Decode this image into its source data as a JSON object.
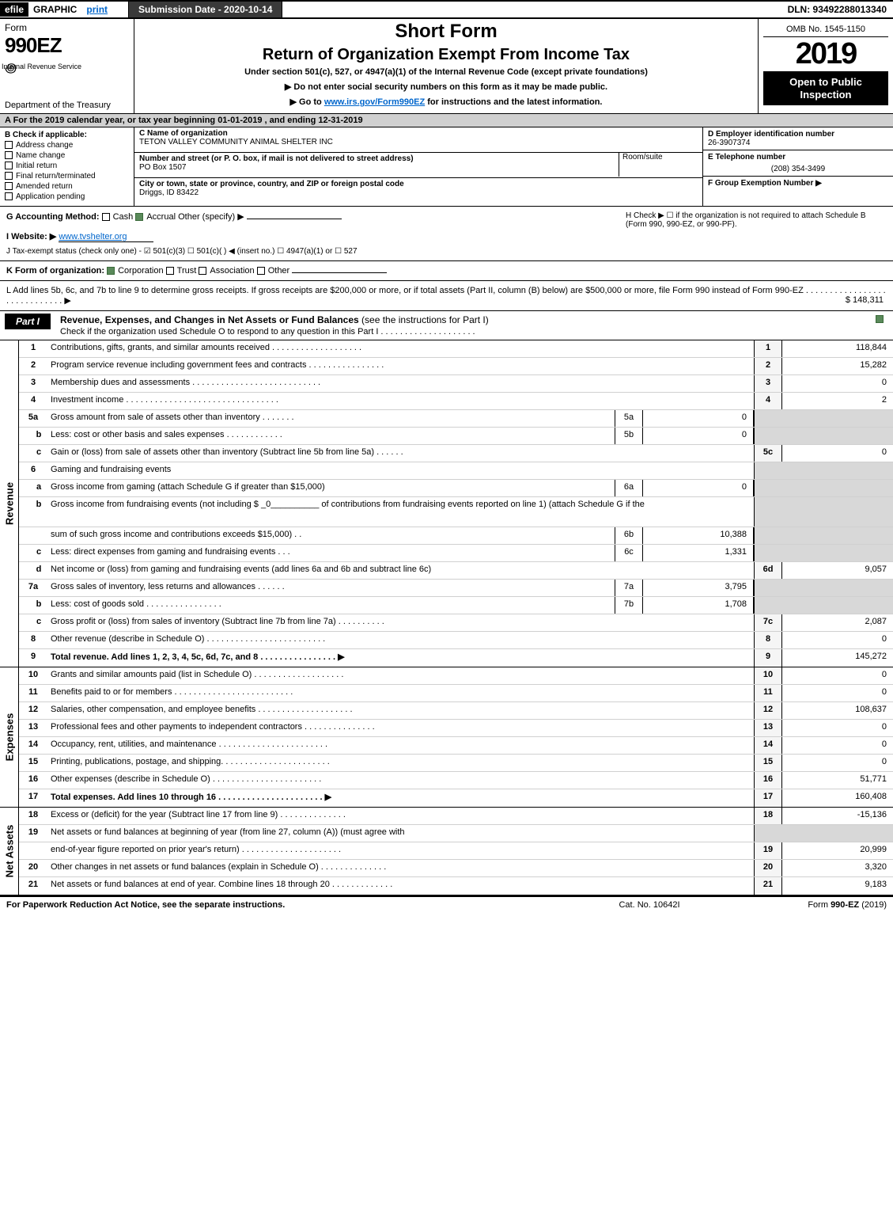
{
  "topbar": {
    "efile": "efile",
    "graphic": "GRAPHIC",
    "print": "print",
    "submission_date_label": "Submission Date - 2020-10-14",
    "dln": "DLN: 93492288013340"
  },
  "header": {
    "form_word": "Form",
    "form_number": "990EZ",
    "dept": "Department of the Treasury",
    "irs": "Internal Revenue Service",
    "short_form": "Short Form",
    "title": "Return of Organization Exempt From Income Tax",
    "subtitle": "Under section 501(c), 527, or 4947(a)(1) of the Internal Revenue Code (except private foundations)",
    "note_ssn": "▶ Do not enter social security numbers on this form as it may be made public.",
    "note_goto_pre": "▶ Go to ",
    "note_goto_link": "www.irs.gov/Form990EZ",
    "note_goto_post": " for instructions and the latest information.",
    "omb": "OMB No. 1545-1150",
    "year": "2019",
    "open": "Open to Public Inspection"
  },
  "period": {
    "text": "A For the 2019 calendar year, or tax year beginning 01-01-2019 , and ending 12-31-2019"
  },
  "block_b": {
    "hdr": "B Check if applicable:",
    "items": [
      "Address change",
      "Name change",
      "Initial return",
      "Final return/terminated",
      "Amended return",
      "Application pending"
    ]
  },
  "block_c": {
    "name_lbl": "C Name of organization",
    "name": "TETON VALLEY COMMUNITY ANIMAL SHELTER INC",
    "street_lbl": "Number and street (or P. O. box, if mail is not delivered to street address)",
    "room_lbl": "Room/suite",
    "street": "PO Box 1507",
    "city_lbl": "City or town, state or province, country, and ZIP or foreign postal code",
    "city": "Driggs, ID  83422"
  },
  "block_d": {
    "ein_lbl": "D Employer identification number",
    "ein": "26-3907374",
    "tel_lbl": "E Telephone number",
    "tel": "(208) 354-3499",
    "group_lbl": "F Group Exemption Number   ▶"
  },
  "g": {
    "label": "G Accounting Method:",
    "cash": "Cash",
    "accrual": "Accrual",
    "other": "Other (specify) ▶"
  },
  "h": {
    "text": "H  Check  ▶  ☐  if the organization is not required to attach Schedule B (Form 990, 990-EZ, or 990-PF)."
  },
  "i": {
    "label": "I Website: ▶",
    "value": "www.tvshelter.org"
  },
  "j": {
    "text": "J Tax-exempt status (check only one) - ☑ 501(c)(3) ☐  501(c)(   ) ◀ (insert no.) ☐  4947(a)(1) or ☐  527"
  },
  "k": {
    "label": "K Form of organization:",
    "corp": "Corporation",
    "trust": "Trust",
    "assoc": "Association",
    "other": "Other"
  },
  "l": {
    "text": "L Add lines 5b, 6c, and 7b to line 9 to determine gross receipts. If gross receipts are $200,000 or more, or if total assets (Part II, column (B) below) are $500,000 or more, file Form 990 instead of Form 990-EZ  .  .  .  .  .  .  .  .  .  .  .  .  .  .  .  .  .  .  .  .  .  .  .  .  .  .  .  .  .  ▶",
    "amount": "$ 148,311"
  },
  "part1": {
    "label": "Part I",
    "title": "Revenue, Expenses, and Changes in Net Assets or Fund Balances",
    "title_note": "(see the instructions for Part I)",
    "check_note": "Check if the organization used Schedule O to respond to any question in this Part I  .  .  .  .  .  .  .  .  .  .  .  .  .  .  .  .  .  .  .  ."
  },
  "revenue_label": "Revenue",
  "expense_label": "Expenses",
  "netassets_label": "Net Assets",
  "lines_revenue": [
    {
      "no": "1",
      "text": "Contributions, gifts, grants, and similar amounts received  .  .  .  .  .  .  .  .  .  .  .  .  .  .  .  .  .  .  .",
      "end_no": "1",
      "end_val": "118,844"
    },
    {
      "no": "2",
      "text": "Program service revenue including government fees and contracts  .  .  .  .  .  .  .  .  .  .  .  .  .  .  .  .",
      "end_no": "2",
      "end_val": "15,282"
    },
    {
      "no": "3",
      "text": "Membership dues and assessments  .  .  .  .  .  .  .  .  .  .  .  .  .  .  .  .  .  .  .  .  .  .  .  .  .  .  .",
      "end_no": "3",
      "end_val": "0"
    },
    {
      "no": "4",
      "text": "Investment income  .  .  .  .  .  .  .  .  .  .  .  .  .  .  .  .  .  .  .  .  .  .  .  .  .  .  .  .  .  .  .  .",
      "end_no": "4",
      "end_val": "2"
    },
    {
      "no": "5a",
      "text": "Gross amount from sale of assets other than inventory  .  .  .  .  .  .  .",
      "mid_no": "5a",
      "mid_val": "0",
      "end_blank": true
    },
    {
      "no": "b",
      "sub": true,
      "text": "Less: cost or other basis and sales expenses  .  .  .  .  .  .  .  .  .  .  .  .",
      "mid_no": "5b",
      "mid_val": "0",
      "end_blank": true
    },
    {
      "no": "c",
      "sub": true,
      "text": "Gain or (loss) from sale of assets other than inventory (Subtract line 5b from line 5a)  .  .  .  .  .  .",
      "end_no": "5c",
      "end_val": "0"
    },
    {
      "no": "6",
      "text": "Gaming and fundraising events",
      "end_blank": true,
      "no_mid": true
    },
    {
      "no": "a",
      "sub": true,
      "text": "Gross income from gaming (attach Schedule G if greater than $15,000)",
      "mid_no": "6a",
      "mid_val": "0",
      "end_blank": true
    },
    {
      "no": "b",
      "sub": true,
      "text": "Gross income from fundraising events (not including $ _0__________ of contributions from fundraising events reported on line 1) (attach Schedule G if the",
      "no_mid": true,
      "end_blank": true,
      "tall": true
    },
    {
      "no": "",
      "sub": true,
      "text": "sum of such gross income and contributions exceeds $15,000)    .  .",
      "mid_no": "6b",
      "mid_val": "10,388",
      "end_blank": true
    },
    {
      "no": "c",
      "sub": true,
      "text": "Less: direct expenses from gaming and fundraising events      .  .  .",
      "mid_no": "6c",
      "mid_val": "1,331",
      "end_blank": true
    },
    {
      "no": "d",
      "sub": true,
      "text": "Net income or (loss) from gaming and fundraising events (add lines 6a and 6b and subtract line 6c)",
      "end_no": "6d",
      "end_val": "9,057"
    },
    {
      "no": "7a",
      "text": "Gross sales of inventory, less returns and allowances  .  .  .  .  .  .",
      "mid_no": "7a",
      "mid_val": "3,795",
      "end_blank": true
    },
    {
      "no": "b",
      "sub": true,
      "text": "Less: cost of goods sold       .  .  .  .  .  .  .  .  .  .  .  .  .  .  .  .",
      "mid_no": "7b",
      "mid_val": "1,708",
      "end_blank": true
    },
    {
      "no": "c",
      "sub": true,
      "text": "Gross profit or (loss) from sales of inventory (Subtract line 7b from line 7a)  .  .  .  .  .  .  .  .  .  .",
      "end_no": "7c",
      "end_val": "2,087"
    },
    {
      "no": "8",
      "text": "Other revenue (describe in Schedule O)  .  .  .  .  .  .  .  .  .  .  .  .  .  .  .  .  .  .  .  .  .  .  .  .  .",
      "end_no": "8",
      "end_val": "0"
    },
    {
      "no": "9",
      "text": "Total revenue. Add lines 1, 2, 3, 4, 5c, 6d, 7c, and 8   .  .  .  .  .  .  .  .  .  .  .  .  .  .  .  .      ▶",
      "end_no": "9",
      "end_val": "145,272",
      "bold": true
    }
  ],
  "lines_expenses": [
    {
      "no": "10",
      "text": "Grants and similar amounts paid (list in Schedule O)   .  .  .  .  .  .  .  .  .  .  .  .  .  .  .  .  .  .  .",
      "end_no": "10",
      "end_val": "0"
    },
    {
      "no": "11",
      "text": "Benefits paid to or for members      .  .  .  .  .  .  .  .  .  .  .  .  .  .  .  .  .  .  .  .  .  .  .  .  .",
      "end_no": "11",
      "end_val": "0"
    },
    {
      "no": "12",
      "text": "Salaries, other compensation, and employee benefits .  .  .  .  .  .  .  .  .  .  .  .  .  .  .  .  .  .  .  .",
      "end_no": "12",
      "end_val": "108,637"
    },
    {
      "no": "13",
      "text": "Professional fees and other payments to independent contractors  .  .  .  .  .  .  .  .  .  .  .  .  .  .  .",
      "end_no": "13",
      "end_val": "0"
    },
    {
      "no": "14",
      "text": "Occupancy, rent, utilities, and maintenance .  .  .  .  .  .  .  .  .  .  .  .  .  .  .  .  .  .  .  .  .  .  .",
      "end_no": "14",
      "end_val": "0"
    },
    {
      "no": "15",
      "text": "Printing, publications, postage, and shipping.  .  .  .  .  .  .  .  .  .  .  .  .  .  .  .  .  .  .  .  .  .  .",
      "end_no": "15",
      "end_val": "0"
    },
    {
      "no": "16",
      "text": "Other expenses (describe in Schedule O)     .  .  .  .  .  .  .  .  .  .  .  .  .  .  .  .  .  .  .  .  .  .  .",
      "end_no": "16",
      "end_val": "51,771"
    },
    {
      "no": "17",
      "text": "Total expenses. Add lines 10 through 16     .  .  .  .  .  .  .  .  .  .  .  .  .  .  .  .  .  .  .  .  .  .    ▶",
      "end_no": "17",
      "end_val": "160,408",
      "bold": true
    }
  ],
  "lines_netassets": [
    {
      "no": "18",
      "text": "Excess or (deficit) for the year (Subtract line 17 from line 9)        .  .  .  .  .  .  .  .  .  .  .  .  .  .",
      "end_no": "18",
      "end_val": "-15,136"
    },
    {
      "no": "19",
      "text": "Net assets or fund balances at beginning of year (from line 27, column (A)) (must agree with",
      "no_end": true,
      "end_blank": true
    },
    {
      "no": "",
      "text": "end-of-year figure reported on prior year's return) .  .  .  .  .  .  .  .  .  .  .  .  .  .  .  .  .  .  .  .  .",
      "end_no": "19",
      "end_val": "20,999"
    },
    {
      "no": "20",
      "text": "Other changes in net assets or fund balances (explain in Schedule O) .  .  .  .  .  .  .  .  .  .  .  .  .  .",
      "end_no": "20",
      "end_val": "3,320"
    },
    {
      "no": "21",
      "text": "Net assets or fund balances at end of year. Combine lines 18 through 20 .  .  .  .  .  .  .  .  .  .  .  .  .",
      "end_no": "21",
      "end_val": "9,183"
    }
  ],
  "footer": {
    "left": "For Paperwork Reduction Act Notice, see the separate instructions.",
    "mid": "Cat. No. 10642I",
    "right_pre": "Form ",
    "right_form": "990-EZ",
    "right_post": " (2019)"
  }
}
